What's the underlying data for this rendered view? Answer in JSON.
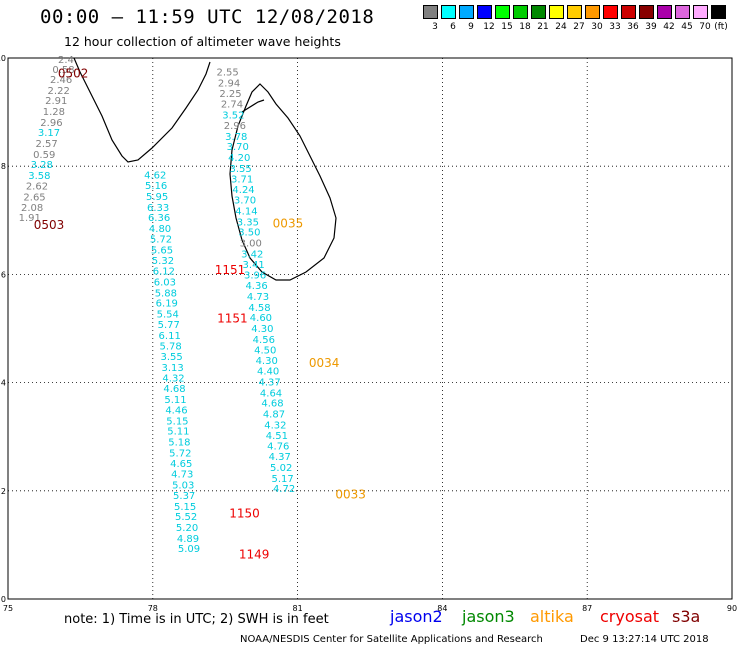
{
  "title": "00:00 – 11:59 UTC 12/08/2018",
  "subtitle": "12 hour collection of altimeter wave heights",
  "legend": {
    "swatches": [
      {
        "color": "#808080",
        "label": "3"
      },
      {
        "color": "#00ffff",
        "label": "6"
      },
      {
        "color": "#00aaff",
        "label": "9"
      },
      {
        "color": "#0000ff",
        "label": "12"
      },
      {
        "color": "#00ff00",
        "label": "15"
      },
      {
        "color": "#00cc00",
        "label": "18"
      },
      {
        "color": "#008800",
        "label": "21"
      },
      {
        "color": "#ffff00",
        "label": "24"
      },
      {
        "color": "#ffcc00",
        "label": "27"
      },
      {
        "color": "#ff9900",
        "label": "30"
      },
      {
        "color": "#ff0000",
        "label": "33"
      },
      {
        "color": "#cc0000",
        "label": "36"
      },
      {
        "color": "#880000",
        "label": "39"
      },
      {
        "color": "#aa00aa",
        "label": "42"
      },
      {
        "color": "#dd66dd",
        "label": "45"
      },
      {
        "color": "#ffaaff",
        "label": "70"
      },
      {
        "color": "#000000",
        "label": ""
      }
    ],
    "unit": "(ft)"
  },
  "map": {
    "lon_range": [
      75,
      90
    ],
    "lat_range": [
      0,
      10
    ],
    "lon_ticks": [
      "75",
      "78",
      "81",
      "84",
      "87",
      "90"
    ],
    "lat_ticks": [
      "0",
      "2",
      "4",
      "6",
      "8",
      "10"
    ],
    "tracks": [
      {
        "name": "track-0502-0503",
        "points": [
          {
            "lon": 76.2,
            "lat": 9.98,
            "v": "2.4",
            "c": "#808080"
          },
          {
            "lon": 76.15,
            "lat": 9.8,
            "v": "0.58",
            "c": "#808080"
          },
          {
            "lon": 76.1,
            "lat": 9.61,
            "v": "2.46",
            "c": "#808080"
          },
          {
            "lon": 76.05,
            "lat": 9.41,
            "v": "2.22",
            "c": "#808080"
          },
          {
            "lon": 76.0,
            "lat": 9.22,
            "v": "2.91",
            "c": "#808080"
          },
          {
            "lon": 75.95,
            "lat": 9.02,
            "v": "1.28",
            "c": "#808080"
          },
          {
            "lon": 75.9,
            "lat": 8.82,
            "v": "2.96",
            "c": "#808080"
          },
          {
            "lon": 75.85,
            "lat": 8.63,
            "v": "3.17",
            "c": "#00ccdd"
          },
          {
            "lon": 75.8,
            "lat": 8.43,
            "v": "2.57",
            "c": "#808080"
          },
          {
            "lon": 75.75,
            "lat": 8.23,
            "v": "0.59",
            "c": "#808080"
          },
          {
            "lon": 75.7,
            "lat": 8.04,
            "v": "3.28",
            "c": "#00ccdd"
          },
          {
            "lon": 75.65,
            "lat": 7.84,
            "v": "3.58",
            "c": "#00ccdd"
          },
          {
            "lon": 75.6,
            "lat": 7.64,
            "v": "2.62",
            "c": "#808080"
          },
          {
            "lon": 75.55,
            "lat": 7.44,
            "v": "2.65",
            "c": "#808080"
          },
          {
            "lon": 75.5,
            "lat": 7.25,
            "v": "2.08",
            "c": "#808080"
          },
          {
            "lon": 75.45,
            "lat": 7.06,
            "v": "1.91",
            "c": "#808080"
          }
        ]
      },
      {
        "name": "track-1149-1151",
        "points": [
          {
            "lon": 78.05,
            "lat": 7.85,
            "v": "4.62",
            "c": "#00ccdd"
          },
          {
            "lon": 78.07,
            "lat": 7.65,
            "v": "5.16",
            "c": "#00ccdd"
          },
          {
            "lon": 78.09,
            "lat": 7.45,
            "v": "5.95",
            "c": "#00ccdd"
          },
          {
            "lon": 78.11,
            "lat": 7.25,
            "v": "6.33",
            "c": "#00ccdd"
          },
          {
            "lon": 78.13,
            "lat": 7.06,
            "v": "6.36",
            "c": "#00ccdd"
          },
          {
            "lon": 78.15,
            "lat": 6.86,
            "v": "4.80",
            "c": "#00ccdd"
          },
          {
            "lon": 78.17,
            "lat": 6.66,
            "v": "5.72",
            "c": "#00ccdd"
          },
          {
            "lon": 78.19,
            "lat": 6.46,
            "v": "5.65",
            "c": "#00ccdd"
          },
          {
            "lon": 78.21,
            "lat": 6.27,
            "v": "5.32",
            "c": "#00ccdd"
          },
          {
            "lon": 78.23,
            "lat": 6.07,
            "v": "6.12",
            "c": "#00ccdd"
          },
          {
            "lon": 78.25,
            "lat": 5.87,
            "v": "6.03",
            "c": "#00ccdd"
          },
          {
            "lon": 78.27,
            "lat": 5.67,
            "v": "5.88",
            "c": "#00ccdd"
          },
          {
            "lon": 78.29,
            "lat": 5.48,
            "v": "6.19",
            "c": "#00ccdd"
          },
          {
            "lon": 78.31,
            "lat": 5.28,
            "v": "5.54",
            "c": "#00ccdd"
          },
          {
            "lon": 78.33,
            "lat": 5.08,
            "v": "5.77",
            "c": "#00ccdd"
          },
          {
            "lon": 78.35,
            "lat": 4.88,
            "v": "6.11",
            "c": "#00ccdd"
          },
          {
            "lon": 78.37,
            "lat": 4.69,
            "v": "5.78",
            "c": "#00ccdd"
          },
          {
            "lon": 78.39,
            "lat": 4.49,
            "v": "3.55",
            "c": "#00ccdd"
          },
          {
            "lon": 78.41,
            "lat": 4.29,
            "v": "3.13",
            "c": "#00ccdd"
          },
          {
            "lon": 78.43,
            "lat": 4.09,
            "v": "4.32",
            "c": "#00ccdd"
          },
          {
            "lon": 78.45,
            "lat": 3.9,
            "v": "4.68",
            "c": "#00ccdd"
          },
          {
            "lon": 78.47,
            "lat": 3.7,
            "v": "5.11",
            "c": "#00ccdd"
          },
          {
            "lon": 78.49,
            "lat": 3.5,
            "v": "4.46",
            "c": "#00ccdd"
          },
          {
            "lon": 78.51,
            "lat": 3.3,
            "v": "5.15",
            "c": "#00ccdd"
          },
          {
            "lon": 78.53,
            "lat": 3.11,
            "v": "5.11",
            "c": "#00ccdd"
          },
          {
            "lon": 78.55,
            "lat": 2.91,
            "v": "5.18",
            "c": "#00ccdd"
          },
          {
            "lon": 78.57,
            "lat": 2.71,
            "v": "5.72",
            "c": "#00ccdd"
          },
          {
            "lon": 78.59,
            "lat": 2.51,
            "v": "4.65",
            "c": "#00ccdd"
          },
          {
            "lon": 78.61,
            "lat": 2.32,
            "v": "4.73",
            "c": "#00ccdd"
          },
          {
            "lon": 78.63,
            "lat": 2.12,
            "v": "5.03",
            "c": "#00ccdd"
          },
          {
            "lon": 78.65,
            "lat": 1.92,
            "v": "5.37",
            "c": "#00ccdd"
          },
          {
            "lon": 78.67,
            "lat": 1.72,
            "v": "5.15",
            "c": "#00ccdd"
          },
          {
            "lon": 78.69,
            "lat": 1.53,
            "v": "5.52",
            "c": "#00ccdd"
          },
          {
            "lon": 78.71,
            "lat": 1.33,
            "v": "5.20",
            "c": "#00ccdd"
          },
          {
            "lon": 78.73,
            "lat": 1.13,
            "v": "4.89",
            "c": "#00ccdd"
          },
          {
            "lon": 78.75,
            "lat": 0.94,
            "v": "5.09",
            "c": "#00ccdd"
          }
        ]
      },
      {
        "name": "track-0033-0035",
        "points": [
          {
            "lon": 79.55,
            "lat": 9.75,
            "v": "2.55",
            "c": "#808080"
          },
          {
            "lon": 79.58,
            "lat": 9.55,
            "v": "2.94",
            "c": "#808080"
          },
          {
            "lon": 79.61,
            "lat": 9.35,
            "v": "2.25",
            "c": "#808080"
          },
          {
            "lon": 79.64,
            "lat": 9.16,
            "v": "2.74",
            "c": "#808080"
          },
          {
            "lon": 79.67,
            "lat": 8.96,
            "v": "3.52",
            "c": "#00ccdd"
          },
          {
            "lon": 79.7,
            "lat": 8.76,
            "v": "2.96",
            "c": "#808080"
          },
          {
            "lon": 79.73,
            "lat": 8.56,
            "v": "3.78",
            "c": "#00ccdd"
          },
          {
            "lon": 79.76,
            "lat": 8.37,
            "v": "3.70",
            "c": "#00ccdd"
          },
          {
            "lon": 79.79,
            "lat": 8.17,
            "v": "4.20",
            "c": "#00ccdd"
          },
          {
            "lon": 79.82,
            "lat": 7.97,
            "v": "3.55",
            "c": "#00ccdd"
          },
          {
            "lon": 79.85,
            "lat": 7.77,
            "v": "3.71",
            "c": "#00ccdd"
          },
          {
            "lon": 79.88,
            "lat": 7.58,
            "v": "4.24",
            "c": "#00ccdd"
          },
          {
            "lon": 79.91,
            "lat": 7.38,
            "v": "3.70",
            "c": "#00ccdd"
          },
          {
            "lon": 79.94,
            "lat": 7.18,
            "v": "4.14",
            "c": "#00ccdd"
          },
          {
            "lon": 79.97,
            "lat": 6.98,
            "v": "3.35",
            "c": "#00ccdd"
          },
          {
            "lon": 80.0,
            "lat": 6.79,
            "v": "3.50",
            "c": "#00ccdd"
          },
          {
            "lon": 80.03,
            "lat": 6.59,
            "v": "3.00",
            "c": "#808080"
          },
          {
            "lon": 80.06,
            "lat": 6.39,
            "v": "3.42",
            "c": "#00ccdd"
          },
          {
            "lon": 80.09,
            "lat": 6.19,
            "v": "3.41",
            "c": "#00ccdd"
          },
          {
            "lon": 80.12,
            "lat": 6.0,
            "v": "3.96",
            "c": "#00ccdd"
          },
          {
            "lon": 80.15,
            "lat": 5.8,
            "v": "4.36",
            "c": "#00ccdd"
          },
          {
            "lon": 80.18,
            "lat": 5.6,
            "v": "4.73",
            "c": "#00ccdd"
          },
          {
            "lon": 80.21,
            "lat": 5.4,
            "v": "4.58",
            "c": "#00ccdd"
          },
          {
            "lon": 80.24,
            "lat": 5.21,
            "v": "4.60",
            "c": "#00ccdd"
          },
          {
            "lon": 80.27,
            "lat": 5.01,
            "v": "4.30",
            "c": "#00ccdd"
          },
          {
            "lon": 80.3,
            "lat": 4.81,
            "v": "4.56",
            "c": "#00ccdd"
          },
          {
            "lon": 80.33,
            "lat": 4.61,
            "v": "4.50",
            "c": "#00ccdd"
          },
          {
            "lon": 80.36,
            "lat": 4.42,
            "v": "4.30",
            "c": "#00ccdd"
          },
          {
            "lon": 80.39,
            "lat": 4.22,
            "v": "4.40",
            "c": "#00ccdd"
          },
          {
            "lon": 80.42,
            "lat": 4.02,
            "v": "4.37",
            "c": "#00ccdd"
          },
          {
            "lon": 80.45,
            "lat": 3.82,
            "v": "4.64",
            "c": "#00ccdd"
          },
          {
            "lon": 80.48,
            "lat": 3.63,
            "v": "4.68",
            "c": "#00ccdd"
          },
          {
            "lon": 80.51,
            "lat": 3.43,
            "v": "4.87",
            "c": "#00ccdd"
          },
          {
            "lon": 80.54,
            "lat": 3.23,
            "v": "4.32",
            "c": "#00ccdd"
          },
          {
            "lon": 80.57,
            "lat": 3.03,
            "v": "4.51",
            "c": "#00ccdd"
          },
          {
            "lon": 80.6,
            "lat": 2.84,
            "v": "4.76",
            "c": "#00ccdd"
          },
          {
            "lon": 80.63,
            "lat": 2.64,
            "v": "4.37",
            "c": "#00ccdd"
          },
          {
            "lon": 80.66,
            "lat": 2.44,
            "v": "5.02",
            "c": "#00ccdd"
          },
          {
            "lon": 80.69,
            "lat": 2.24,
            "v": "5.17",
            "c": "#00ccdd"
          },
          {
            "lon": 80.72,
            "lat": 2.05,
            "v": "4.72",
            "c": "#00ccdd"
          }
        ]
      }
    ],
    "time_labels": [
      {
        "lon": 76.35,
        "lat": 9.73,
        "text": "0502",
        "c": "#800000"
      },
      {
        "lon": 75.85,
        "lat": 6.93,
        "text": "0503",
        "c": "#800000"
      },
      {
        "lon": 79.6,
        "lat": 6.1,
        "text": "1151",
        "c": "#ee0000"
      },
      {
        "lon": 79.65,
        "lat": 5.2,
        "text": "1151",
        "c": "#ee0000"
      },
      {
        "lon": 79.9,
        "lat": 1.6,
        "text": "1150",
        "c": "#ee0000"
      },
      {
        "lon": 80.1,
        "lat": 0.84,
        "text": "1149",
        "c": "#ee0000"
      },
      {
        "lon": 80.8,
        "lat": 6.96,
        "text": "0035",
        "c": "#ee9900"
      },
      {
        "lon": 81.55,
        "lat": 4.38,
        "text": "0034",
        "c": "#ee9900"
      },
      {
        "lon": 82.1,
        "lat": 1.95,
        "text": "0033",
        "c": "#ee9900"
      }
    ]
  },
  "note": "note: 1) Time is in UTC; 2) SWH is in feet",
  "satellites": [
    {
      "name": "jason2",
      "color": "#0000ee"
    },
    {
      "name": "jason3",
      "color": "#008800"
    },
    {
      "name": "altika",
      "color": "#ff9900"
    },
    {
      "name": "cryosat",
      "color": "#ee0000"
    },
    {
      "name": "s3a",
      "color": "#800000"
    }
  ],
  "credit": "NOAA/NESDIS Center for Satellite Applications and Research",
  "stamp": "Dec 9 13:27:14 UTC 2018"
}
